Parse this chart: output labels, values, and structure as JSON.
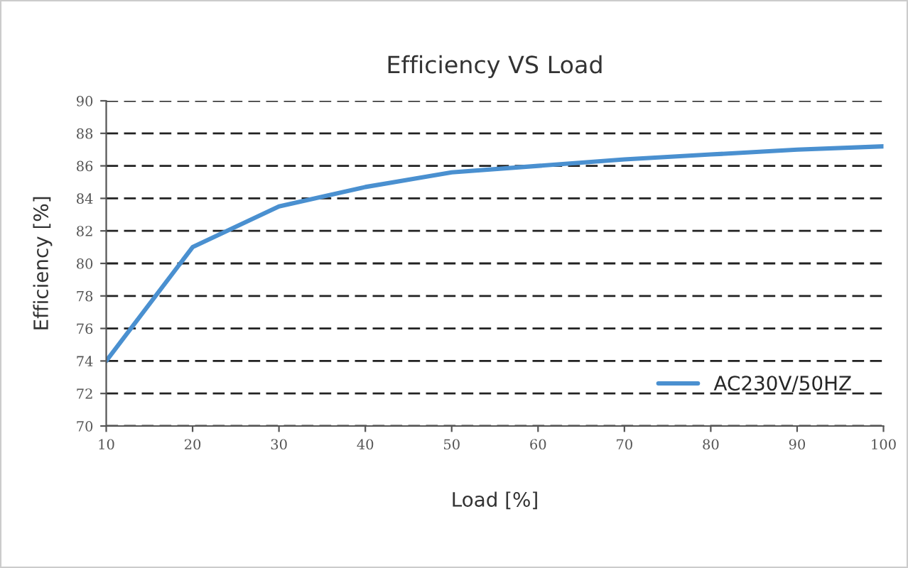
{
  "chart_data": {
    "type": "line",
    "title": "Efficiency VS Load",
    "xlabel": "Load [%]",
    "ylabel": "Efficiency [%]",
    "x": [
      10,
      20,
      30,
      40,
      50,
      60,
      70,
      80,
      90,
      100
    ],
    "series": [
      {
        "name": "AC230V/50HZ",
        "color": "#4a90d0",
        "values": [
          74,
          81,
          83.5,
          84.7,
          85.6,
          86.0,
          86.4,
          86.7,
          87.0,
          87.2
        ]
      }
    ],
    "xlim": [
      10,
      100
    ],
    "xticks": [
      10,
      20,
      30,
      40,
      50,
      60,
      70,
      80,
      90,
      100
    ],
    "ylim": [
      70,
      90
    ],
    "yticks": [
      70,
      72,
      74,
      76,
      78,
      80,
      82,
      84,
      86,
      88,
      90
    ],
    "grid": "y",
    "legend": "bottom right",
    "marker": "none",
    "line_style": "solid"
  }
}
